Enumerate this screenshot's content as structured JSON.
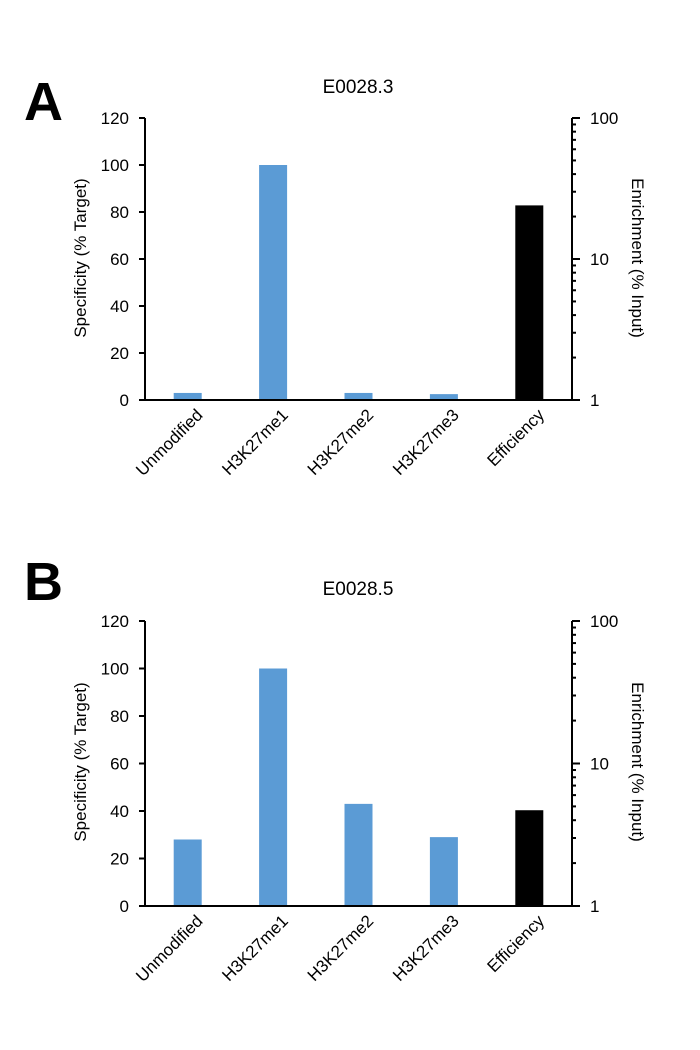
{
  "chart_data": [
    {
      "panel_letter": "A",
      "type": "bar",
      "title": "E0028.3",
      "categories": [
        "Unmodified",
        "H3K27me1",
        "H3K27me2",
        "H3K27me3",
        "Efficiency"
      ],
      "series": [
        {
          "axis": "left",
          "color": "#5B9BD5",
          "values": [
            3,
            100,
            3,
            2.5,
            null
          ]
        },
        {
          "axis": "right",
          "color": "#000000",
          "values": [
            null,
            null,
            null,
            null,
            24
          ]
        }
      ],
      "ylabel": "Specificity (% Target)",
      "ylim": [
        0,
        120
      ],
      "yticks": [
        "0",
        "20",
        "40",
        "60",
        "80",
        "100",
        "120"
      ],
      "y2label": "Enrichment (% Input)",
      "y2scale": "log",
      "y2lim": [
        1,
        100
      ],
      "y2ticks": [
        "1",
        "10",
        "100"
      ],
      "grid": false
    },
    {
      "panel_letter": "B",
      "type": "bar",
      "title": "E0028.5",
      "categories": [
        "Unmodified",
        "H3K27me1",
        "H3K27me2",
        "H3K27me3",
        "Efficiency"
      ],
      "series": [
        {
          "axis": "left",
          "color": "#5B9BD5",
          "values": [
            28,
            100,
            43,
            29,
            null
          ]
        },
        {
          "axis": "right",
          "color": "#000000",
          "values": [
            null,
            null,
            null,
            null,
            4.7
          ]
        }
      ],
      "ylabel": "Specificity (% Target)",
      "ylim": [
        0,
        120
      ],
      "yticks": [
        "0",
        "20",
        "40",
        "60",
        "80",
        "100",
        "120"
      ],
      "y2label": "Enrichment (% Input)",
      "y2scale": "log",
      "y2lim": [
        1,
        100
      ],
      "y2ticks": [
        "1",
        "10",
        "100"
      ],
      "grid": false
    }
  ]
}
